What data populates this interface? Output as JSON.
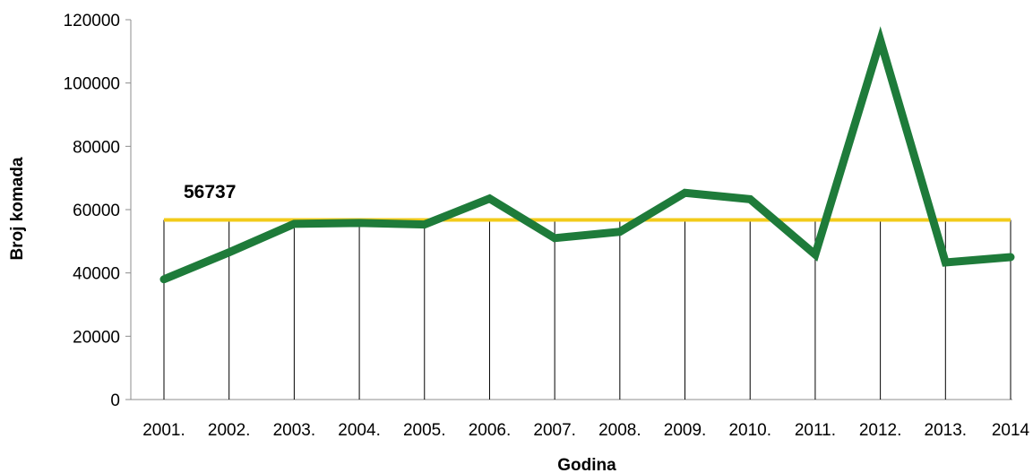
{
  "chart_data": {
    "type": "line",
    "title": "",
    "xlabel": "Godina",
    "ylabel": "Broj komada",
    "ylim": [
      0,
      120000
    ],
    "yticks": [
      "0",
      "20000",
      "40000",
      "60000",
      "80000",
      "100000",
      "120000"
    ],
    "categories": [
      "2001.",
      "2002.",
      "2003.",
      "2004.",
      "2005.",
      "2006.",
      "2007.",
      "2008.",
      "2009.",
      "2010.",
      "2011.",
      "2012.",
      "2013.",
      "2014"
    ],
    "series": [
      {
        "values": [
          38000,
          46500,
          55500,
          55800,
          55300,
          63500,
          51000,
          53000,
          65300,
          63300,
          45800,
          113500,
          43300,
          45000
        ],
        "color": "#1e7b3a"
      }
    ],
    "average": {
      "value": 56737,
      "label": "56737",
      "color": "#f2cb1a"
    },
    "grid": false,
    "vertical_drop_lines": true,
    "legend": "none"
  }
}
